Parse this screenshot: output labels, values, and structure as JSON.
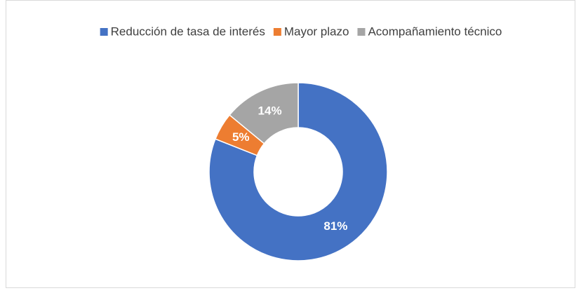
{
  "chart_data": {
    "type": "doughnut",
    "categories": [
      "Reducción de tasa de interés",
      "Mayor plazo",
      "Acompañamiento técnico"
    ],
    "values": [
      81,
      5,
      14
    ],
    "value_labels": [
      "81%",
      "5%",
      "14%"
    ],
    "colors": [
      "#4472c4",
      "#ed7d31",
      "#a5a5a5"
    ],
    "legend": "top"
  }
}
